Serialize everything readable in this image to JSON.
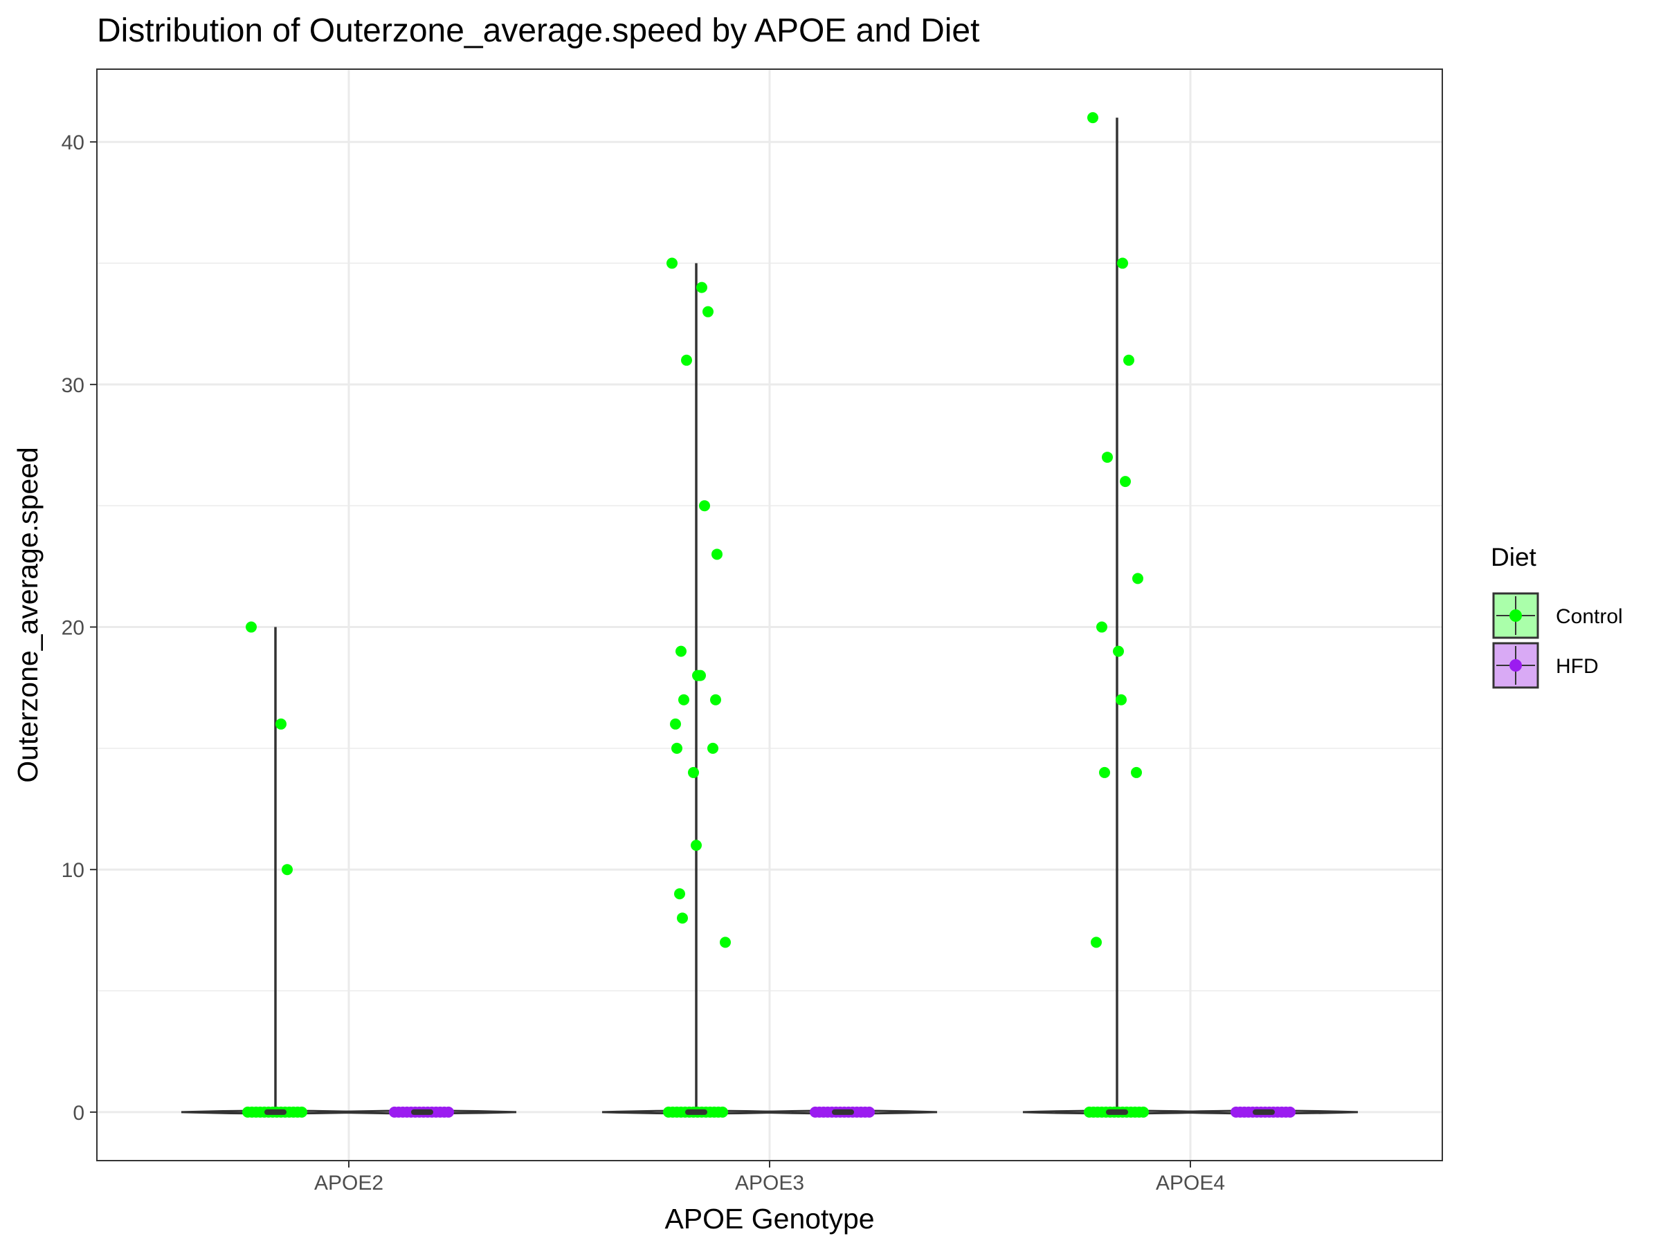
{
  "chart_data": {
    "type": "violin",
    "title": "Distribution of Outerzone_average.speed by APOE and Diet",
    "xlabel": "APOE Genotype",
    "ylabel": "Outerzone_average.speed",
    "categories": [
      "APOE2",
      "APOE3",
      "APOE4"
    ],
    "ylim": [
      -2,
      43
    ],
    "yticks": [
      0,
      10,
      20,
      30,
      40
    ],
    "grid": true,
    "legend": {
      "title": "Diet",
      "position": "right",
      "items": [
        "Control",
        "HFD"
      ]
    },
    "colors": {
      "Control": "#00ff00",
      "HFD": "#9b1cf0",
      "violin_line": "#333333",
      "grid": "#ebebeb",
      "panel_border": "#333333"
    },
    "series": [
      {
        "name": "Control",
        "groups": [
          {
            "category": "APOE2",
            "max": 20,
            "median": 0,
            "nonzero_points": [
              20,
              16,
              10
            ]
          },
          {
            "category": "APOE3",
            "max": 35,
            "median": 0,
            "nonzero_points": [
              35,
              34,
              33,
              31,
              25,
              23,
              19,
              18,
              18,
              17,
              17,
              16,
              15,
              15,
              14,
              11,
              9,
              8,
              7
            ]
          },
          {
            "category": "APOE4",
            "max": 41,
            "median": 0,
            "nonzero_points": [
              41,
              35,
              31,
              27,
              26,
              22,
              20,
              19,
              17,
              14,
              14,
              7
            ]
          }
        ]
      },
      {
        "name": "HFD",
        "groups": [
          {
            "category": "APOE2",
            "max": 0,
            "median": 0,
            "nonzero_points": []
          },
          {
            "category": "APOE3",
            "max": 0,
            "median": 0,
            "nonzero_points": []
          },
          {
            "category": "APOE4",
            "max": 0,
            "median": 0,
            "nonzero_points": []
          }
        ]
      }
    ]
  }
}
